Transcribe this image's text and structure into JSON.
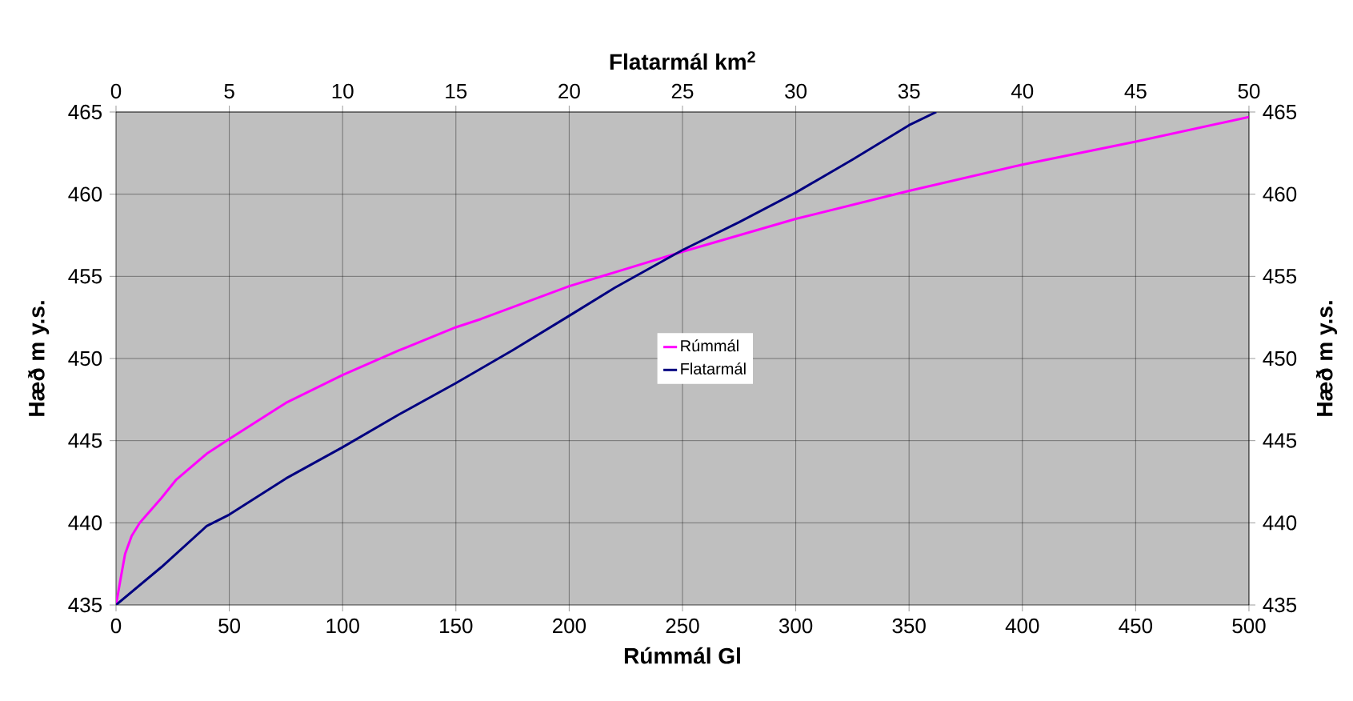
{
  "chart_data": {
    "type": "line",
    "xlabel": "Rúmmál Gl",
    "x2label": "Flatarmál km$^{2}$",
    "ylabel": "Hæð m y.s.",
    "y2label": "Hæð m y.s.",
    "xlim": [
      0,
      500
    ],
    "xticks": [
      0,
      50,
      100,
      150,
      200,
      250,
      300,
      350,
      400,
      450,
      500
    ],
    "x2lim": [
      0,
      50
    ],
    "x2ticks": [
      0,
      5,
      10,
      15,
      20,
      25,
      30,
      35,
      40,
      45,
      50
    ],
    "ylim": [
      435,
      465
    ],
    "yticks": [
      435,
      440,
      445,
      450,
      455,
      460,
      465
    ],
    "y2lim": [
      435,
      465
    ],
    "y2ticks": [
      435,
      440,
      445,
      450,
      455,
      460,
      465
    ],
    "grid": true,
    "legend": "center",
    "series": [
      {
        "name": "Rúmmál",
        "color": "#ff00ff",
        "x": [
          0,
          1.9,
          4,
          6.9,
          10.5,
          20,
          26.4,
          40,
          50,
          75,
          100,
          125,
          150,
          161,
          200,
          250,
          300,
          350,
          400,
          450,
          500
        ],
        "values": [
          435,
          436.5,
          438.1,
          439.2,
          440,
          441.5,
          442.6,
          444.2,
          445.1,
          447.3,
          449,
          450.5,
          451.9,
          452.4,
          454.4,
          456.5,
          458.5,
          460.2,
          461.8,
          463.2,
          464.7
        ]
      },
      {
        "name": "Flatarmál",
        "color": "#000080",
        "axis": "x2",
        "x": [
          0,
          2,
          4,
          5,
          7.5,
          10,
          12.5,
          15,
          17.5,
          20,
          22,
          25,
          27.5,
          30,
          32.5,
          35,
          36.2
        ],
        "values": [
          435,
          437.3,
          439.8,
          440.5,
          442.7,
          444.6,
          446.6,
          448.5,
          450.5,
          452.6,
          454.3,
          456.6,
          458.3,
          460.1,
          462.1,
          464.2,
          465
        ]
      }
    ]
  }
}
